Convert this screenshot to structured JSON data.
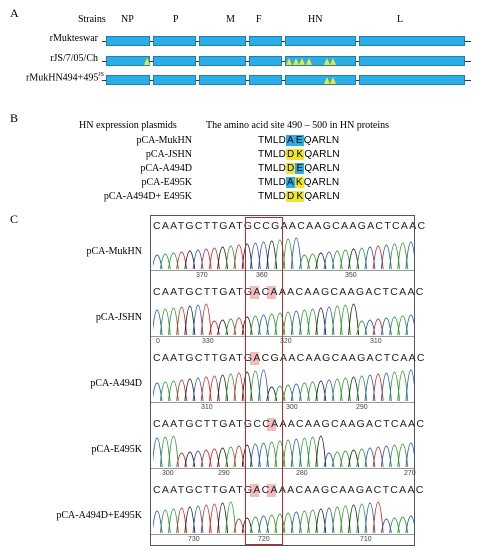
{
  "panelA": {
    "letter": "A",
    "header_strains": "Strains",
    "genes": [
      "NP",
      "P",
      "M",
      "F",
      "HN",
      "L"
    ],
    "strains": [
      "rMukteswar",
      "rJS/7/05/Ch",
      "rMukHN494+495"
    ],
    "strain3_superscript": "JS",
    "marker_color": "#f2e62a",
    "segment_color": "#29aee8"
  },
  "panelB": {
    "letter": "B",
    "col1_header": "HN expression plasmids",
    "col2_header": "The amino acid site 490 – 500 in HN proteins",
    "rows": [
      {
        "plasmid": "pCA-MukHN",
        "pre": "TMLD",
        "h1": "A",
        "h2": "E",
        "post": "QARLN",
        "c1": "#29aee8",
        "c2": "#29aee8"
      },
      {
        "plasmid": "pCA-JSHN",
        "pre": "TMLD",
        "h1": "D",
        "h2": "K",
        "post": "QARLN",
        "c1": "#f2e62a",
        "c2": "#f2e62a"
      },
      {
        "plasmid": "pCA-A494D",
        "pre": "TMLD",
        "h1": "D",
        "h2": "E",
        "post": "QARLN",
        "c1": "#f2e62a",
        "c2": "#29aee8"
      },
      {
        "plasmid": "pCA-E495K",
        "pre": "TMLD",
        "h1": "A",
        "h2": "K",
        "post": "QARLN",
        "c1": "#29aee8",
        "c2": "#f2e62a"
      },
      {
        "plasmid": "pCA-A494D+ E495K",
        "pre": "TMLD",
        "h1": "D",
        "h2": "K",
        "post": "QARLN",
        "c1": "#f2e62a",
        "c2": "#f2e62a"
      }
    ]
  },
  "panelC": {
    "letter": "C",
    "traces": [
      {
        "label": "pCA-MukHN",
        "seq": "CAATGCTTGATGCCGAACAAGCAAGACTCAAC",
        "ticks": [
          "370",
          "360",
          "350"
        ]
      },
      {
        "label": "pCA-JSHN",
        "seq": "CAATGCTTGATGACAAACAAGCAAGACTCAAC",
        "ticks": [
          "0",
          "330",
          "320",
          "310"
        ]
      },
      {
        "label": "pCA-A494D",
        "seq": "CAATGCTTGATGACGAACAAGCAAGACTCAAC",
        "ticks": [
          "310",
          "300",
          "290"
        ]
      },
      {
        "label": "pCA-E495K",
        "seq": "CAATGCTTGATGCCAAACAAGCAAGACTCAAC",
        "ticks": [
          "300",
          "290",
          "280",
          "270"
        ]
      },
      {
        "label": "pCA-A494D+E495K",
        "seq": "CAATGCTTGATGACAAACAAGCAAGACTCAAC",
        "ticks": [
          "730",
          "720",
          "710"
        ]
      }
    ],
    "highlight_box_color": "#c0272d"
  }
}
